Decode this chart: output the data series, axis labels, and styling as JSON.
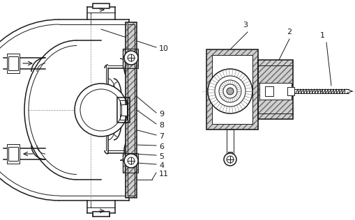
{
  "bg_color": "#ffffff",
  "line_color": "#1a1a1a",
  "fig_width": 5.1,
  "fig_height": 3.16,
  "dpi": 100
}
